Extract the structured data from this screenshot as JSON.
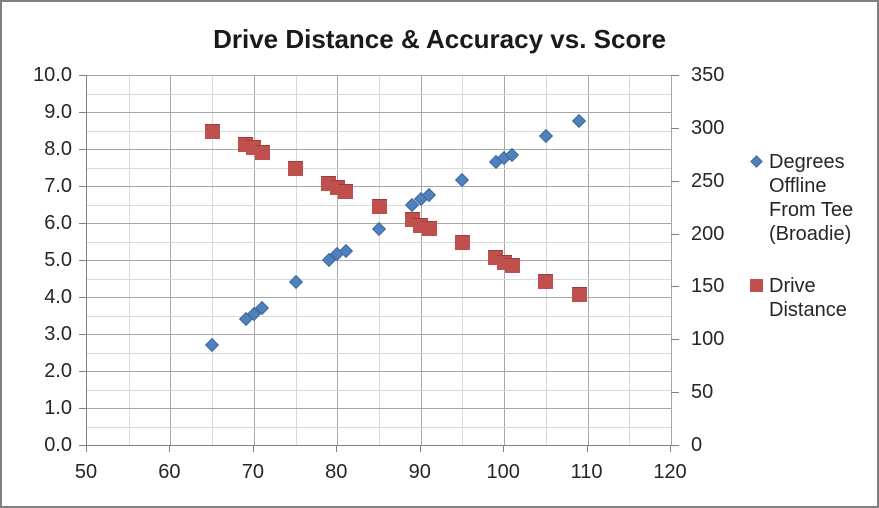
{
  "title": "Drive Distance & Accuracy vs. Score",
  "legend": {
    "position": "right",
    "items": [
      {
        "label": "Degrees Offline From Tee (Broadie)",
        "marker": "diamond",
        "color": "#4F81BD"
      },
      {
        "label": "Drive Distance",
        "marker": "square",
        "color": "#C0504D"
      }
    ]
  },
  "colors": {
    "series_degrees_offline": "#4F81BD",
    "series_drive_distance": "#C0504D",
    "grid_major": "#A6A6A6",
    "grid_minor": "#D9D9D9",
    "axis_line": "#808080",
    "text": "#262626",
    "title_text": "#1a1a1a",
    "chart_border": "#808080",
    "background": "#FFFFFF"
  },
  "chart_data": {
    "type": "scatter",
    "title": "Drive Distance & Accuracy vs. Score",
    "xlabel": "",
    "ylabel_left": "",
    "ylabel_right": "",
    "grid": true,
    "legend_position": "right",
    "x_axis": {
      "min": 50,
      "max": 120,
      "major": 10,
      "minor": 5,
      "tick_labels": [
        "50",
        "60",
        "70",
        "80",
        "90",
        "100",
        "110",
        "120"
      ]
    },
    "y_left_axis": {
      "min": 0,
      "max": 10,
      "major": 1,
      "minor": 0.5,
      "tick_labels": [
        "0.0",
        "1.0",
        "2.0",
        "3.0",
        "4.0",
        "5.0",
        "6.0",
        "7.0",
        "8.0",
        "9.0",
        "10.0"
      ]
    },
    "y_right_axis": {
      "min": 0,
      "max": 350,
      "major": 50,
      "tick_labels": [
        "0",
        "50",
        "100",
        "150",
        "200",
        "250",
        "300",
        "350"
      ]
    },
    "x": [
      65,
      69,
      70,
      71,
      75,
      79,
      80,
      81,
      85,
      89,
      90,
      91,
      95,
      99,
      100,
      101,
      105,
      109
    ],
    "series": [
      {
        "name": "Degrees Offline From Tee (Broadie)",
        "axis": "left",
        "marker": "diamond",
        "color": "#4F81BD",
        "values": [
          2.7,
          3.4,
          3.55,
          3.7,
          4.4,
          5.0,
          5.15,
          5.25,
          5.85,
          6.5,
          6.65,
          6.75,
          7.15,
          7.65,
          7.75,
          7.85,
          8.35,
          8.75
        ]
      },
      {
        "name": "Drive Distance",
        "axis": "right",
        "marker": "square",
        "color": "#C0504D",
        "values": [
          297,
          284,
          281,
          277,
          262,
          247,
          244,
          240,
          226,
          213,
          208,
          205,
          192,
          177,
          173,
          170,
          155,
          142
        ]
      }
    ]
  }
}
